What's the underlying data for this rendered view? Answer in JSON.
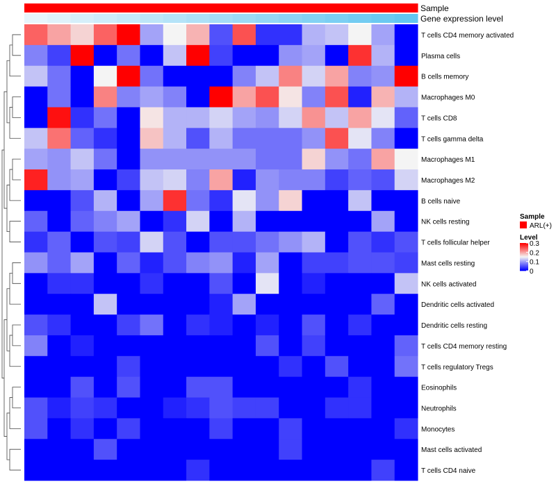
{
  "chart_data": {
    "type": "heatmap",
    "annotation_tracks": [
      {
        "label": "Sample",
        "values": [
          "ARL(+)",
          "ARL(+)",
          "ARL(+)",
          "ARL(+)",
          "ARL(+)",
          "ARL(+)",
          "ARL(+)",
          "ARL(+)",
          "ARL(+)",
          "ARL(+)",
          "ARL(+)",
          "ARL(+)",
          "ARL(+)",
          "ARL(+)",
          "ARL(+)",
          "ARL(+)",
          "ARL(+)"
        ]
      },
      {
        "label": "Gene expression level",
        "values": [
          0.02,
          0.06,
          0.1,
          0.14,
          0.18,
          0.22,
          0.26,
          0.3,
          0.34,
          0.38,
          0.42,
          0.46,
          0.5,
          0.54,
          0.58,
          0.62,
          0.66
        ]
      }
    ],
    "rows": [
      "T cells CD4 memory activated",
      "Plasma cells",
      "B cells memory",
      "Macrophages M0",
      "T cells CD8",
      "T cells gamma delta",
      "Macrophages M1",
      "Macrophages M2",
      "B cells naive",
      "NK cells resting",
      "T cells follicular helper",
      "Mast cells resting",
      "NK cells activated",
      "Dendritic cells activated",
      "Dendritic cells resting",
      "T cells CD4 memory resting",
      "T cells regulatory  Tregs",
      "Eosinophils",
      "Neutrophils",
      "Monocytes",
      "Mast cells activated",
      "T cells CD4 naive"
    ],
    "values": [
      [
        0.24,
        0.2,
        0.17,
        0.24,
        0.31,
        0.1,
        0.15,
        0.19,
        0.05,
        0.25,
        0.03,
        0.03,
        0.11,
        0.12,
        0.15,
        0.1,
        0.0
      ],
      [
        0.08,
        0.04,
        0.31,
        0.0,
        0.07,
        0.0,
        0.12,
        0.32,
        0.04,
        0.0,
        0.0,
        0.09,
        0.1,
        0.0,
        0.27,
        0.11,
        0.0
      ],
      [
        0.12,
        0.07,
        0.0,
        0.15,
        0.31,
        0.07,
        0.0,
        0.0,
        0.0,
        0.08,
        0.12,
        0.22,
        0.13,
        0.2,
        0.08,
        0.09,
        0.32
      ],
      [
        0.0,
        0.07,
        0.0,
        0.22,
        0.08,
        0.1,
        0.08,
        0.0,
        0.32,
        0.2,
        0.25,
        0.16,
        0.08,
        0.25,
        0.02,
        0.19,
        0.11
      ],
      [
        0.0,
        0.29,
        0.03,
        0.07,
        0.0,
        0.16,
        0.11,
        0.11,
        0.13,
        0.1,
        0.09,
        0.13,
        0.21,
        0.12,
        0.2,
        0.14,
        0.06
      ],
      [
        0.12,
        0.23,
        0.06,
        0.03,
        0.0,
        0.18,
        0.11,
        0.05,
        0.11,
        0.07,
        0.07,
        0.07,
        0.09,
        0.25,
        0.14,
        0.08,
        0.0
      ],
      [
        0.1,
        0.09,
        0.12,
        0.07,
        0.0,
        0.09,
        0.09,
        0.09,
        0.09,
        0.09,
        0.07,
        0.07,
        0.17,
        0.09,
        0.07,
        0.2,
        0.15
      ],
      [
        0.28,
        0.09,
        0.1,
        0.0,
        0.04,
        0.12,
        0.13,
        0.08,
        0.2,
        0.02,
        0.09,
        0.08,
        0.08,
        0.04,
        0.06,
        0.05,
        0.13
      ],
      [
        0.0,
        0.0,
        0.05,
        0.11,
        0.0,
        0.1,
        0.27,
        0.07,
        0.03,
        0.14,
        0.09,
        0.17,
        0.0,
        0.0,
        0.12,
        0.0,
        0.0
      ],
      [
        0.06,
        0.0,
        0.06,
        0.08,
        0.1,
        0.0,
        0.03,
        0.13,
        0.0,
        0.11,
        0.0,
        0.0,
        0.0,
        0.0,
        0.0,
        0.1,
        0.0
      ],
      [
        0.03,
        0.06,
        0.0,
        0.05,
        0.04,
        0.13,
        0.05,
        0.0,
        0.05,
        0.05,
        0.07,
        0.09,
        0.11,
        0.0,
        0.05,
        0.03,
        0.05
      ],
      [
        0.09,
        0.06,
        0.1,
        0.0,
        0.06,
        0.02,
        0.05,
        0.08,
        0.09,
        0.02,
        0.1,
        0.0,
        0.04,
        0.04,
        0.05,
        0.05,
        0.04
      ],
      [
        0.0,
        0.03,
        0.03,
        0.0,
        0.0,
        0.03,
        0.0,
        0.0,
        0.05,
        0.0,
        0.14,
        0.0,
        0.02,
        0.0,
        0.0,
        0.0,
        0.12
      ],
      [
        0.0,
        0.0,
        0.0,
        0.12,
        0.0,
        0.0,
        0.0,
        0.0,
        0.02,
        0.1,
        0.0,
        0.0,
        0.0,
        0.0,
        0.0,
        0.06,
        0.0
      ],
      [
        0.05,
        0.03,
        0.0,
        0.0,
        0.04,
        0.07,
        0.0,
        0.03,
        0.02,
        0.0,
        0.02,
        0.0,
        0.05,
        0.0,
        0.03,
        0.0,
        0.0
      ],
      [
        0.08,
        0.0,
        0.02,
        0.0,
        0.0,
        0.0,
        0.0,
        0.0,
        0.0,
        0.0,
        0.05,
        0.0,
        0.04,
        0.0,
        0.0,
        0.0,
        0.06
      ],
      [
        0.0,
        0.0,
        0.0,
        0.0,
        0.04,
        0.0,
        0.0,
        0.0,
        0.0,
        0.0,
        0.0,
        0.03,
        0.0,
        0.05,
        0.0,
        0.0,
        0.07
      ],
      [
        0.0,
        0.0,
        0.05,
        0.0,
        0.05,
        0.0,
        0.0,
        0.05,
        0.05,
        0.0,
        0.0,
        0.0,
        0.0,
        0.0,
        0.03,
        0.0,
        0.0
      ],
      [
        0.05,
        0.02,
        0.04,
        0.03,
        0.0,
        0.0,
        0.02,
        0.03,
        0.05,
        0.04,
        0.04,
        0.0,
        0.0,
        0.03,
        0.03,
        0.0,
        0.0
      ],
      [
        0.05,
        0.0,
        0.03,
        0.0,
        0.04,
        0.0,
        0.0,
        0.0,
        0.04,
        0.0,
        0.0,
        0.04,
        0.0,
        0.0,
        0.0,
        0.0,
        0.03
      ],
      [
        0.0,
        0.0,
        0.0,
        0.05,
        0.0,
        0.0,
        0.0,
        0.0,
        0.0,
        0.0,
        0.0,
        0.04,
        0.0,
        0.0,
        0.0,
        0.0,
        0.0
      ],
      [
        0.0,
        0.0,
        0.0,
        0.0,
        0.0,
        0.0,
        0.0,
        0.03,
        0.0,
        0.0,
        0.0,
        0.0,
        0.0,
        0.0,
        0.0,
        0.04,
        0.0
      ]
    ],
    "color_scale": {
      "min": 0,
      "max": 0.3,
      "low": "#0000ff",
      "mid": "#f4f4f4",
      "high": "#ff0000",
      "mid_value": 0.15
    },
    "legend": {
      "sample_title": "Sample",
      "sample_entry": "ARL(+)",
      "sample_color": "#ff0000",
      "level_title": "Level",
      "level_ticks": [
        {
          "value": 0.3,
          "label": "0.3"
        },
        {
          "value": 0.2,
          "label": "0.2"
        },
        {
          "value": 0.1,
          "label": "0.1"
        },
        {
          "value": 0,
          "label": "0"
        }
      ],
      "placement": "right"
    },
    "dendrogram": "rows"
  }
}
